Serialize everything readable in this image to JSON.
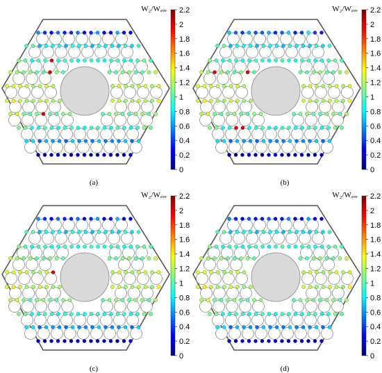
{
  "panels": [
    {
      "id": "a",
      "label": "(a)",
      "colorbar_title": "W₂/Wₐᵥₑ",
      "profile": {
        "topBias": 0.0,
        "hot": [
          [
            2,
            5
          ],
          [
            3,
            6
          ],
          [
            6,
            5
          ]
        ]
      }
    },
    {
      "id": "b",
      "label": "(b)",
      "colorbar_title": "W₂/Wₐᵥₑ",
      "profile": {
        "topBias": 0.3,
        "hot": [
          [
            3,
            2
          ],
          [
            3,
            7
          ],
          [
            7,
            4
          ],
          [
            7,
            5
          ]
        ]
      }
    },
    {
      "id": "c",
      "label": "(c)",
      "colorbar_title": "W₂/Wₐᵥₑ",
      "profile": {
        "topBias": 0.0,
        "hot": [
          [
            4,
            7
          ],
          [
            4,
            8
          ]
        ]
      }
    },
    {
      "id": "d",
      "label": "(d)",
      "colorbar_title": "W₂/Wₐᵥₑ",
      "profile": {
        "topBias": -0.1,
        "hot": []
      }
    }
  ],
  "colorbar": {
    "min": 0,
    "max": 2.2,
    "ticks": [
      "2.2",
      "2",
      "1.8",
      "1.6",
      "1.4",
      "1.2",
      "1",
      "0.8",
      "0.6",
      "0.4",
      "0.2",
      "0"
    ]
  },
  "colors": {
    "hex_outline": "#555555",
    "center_fill": "#d9d9d9",
    "circle_stroke": "#8a8a8a"
  }
}
